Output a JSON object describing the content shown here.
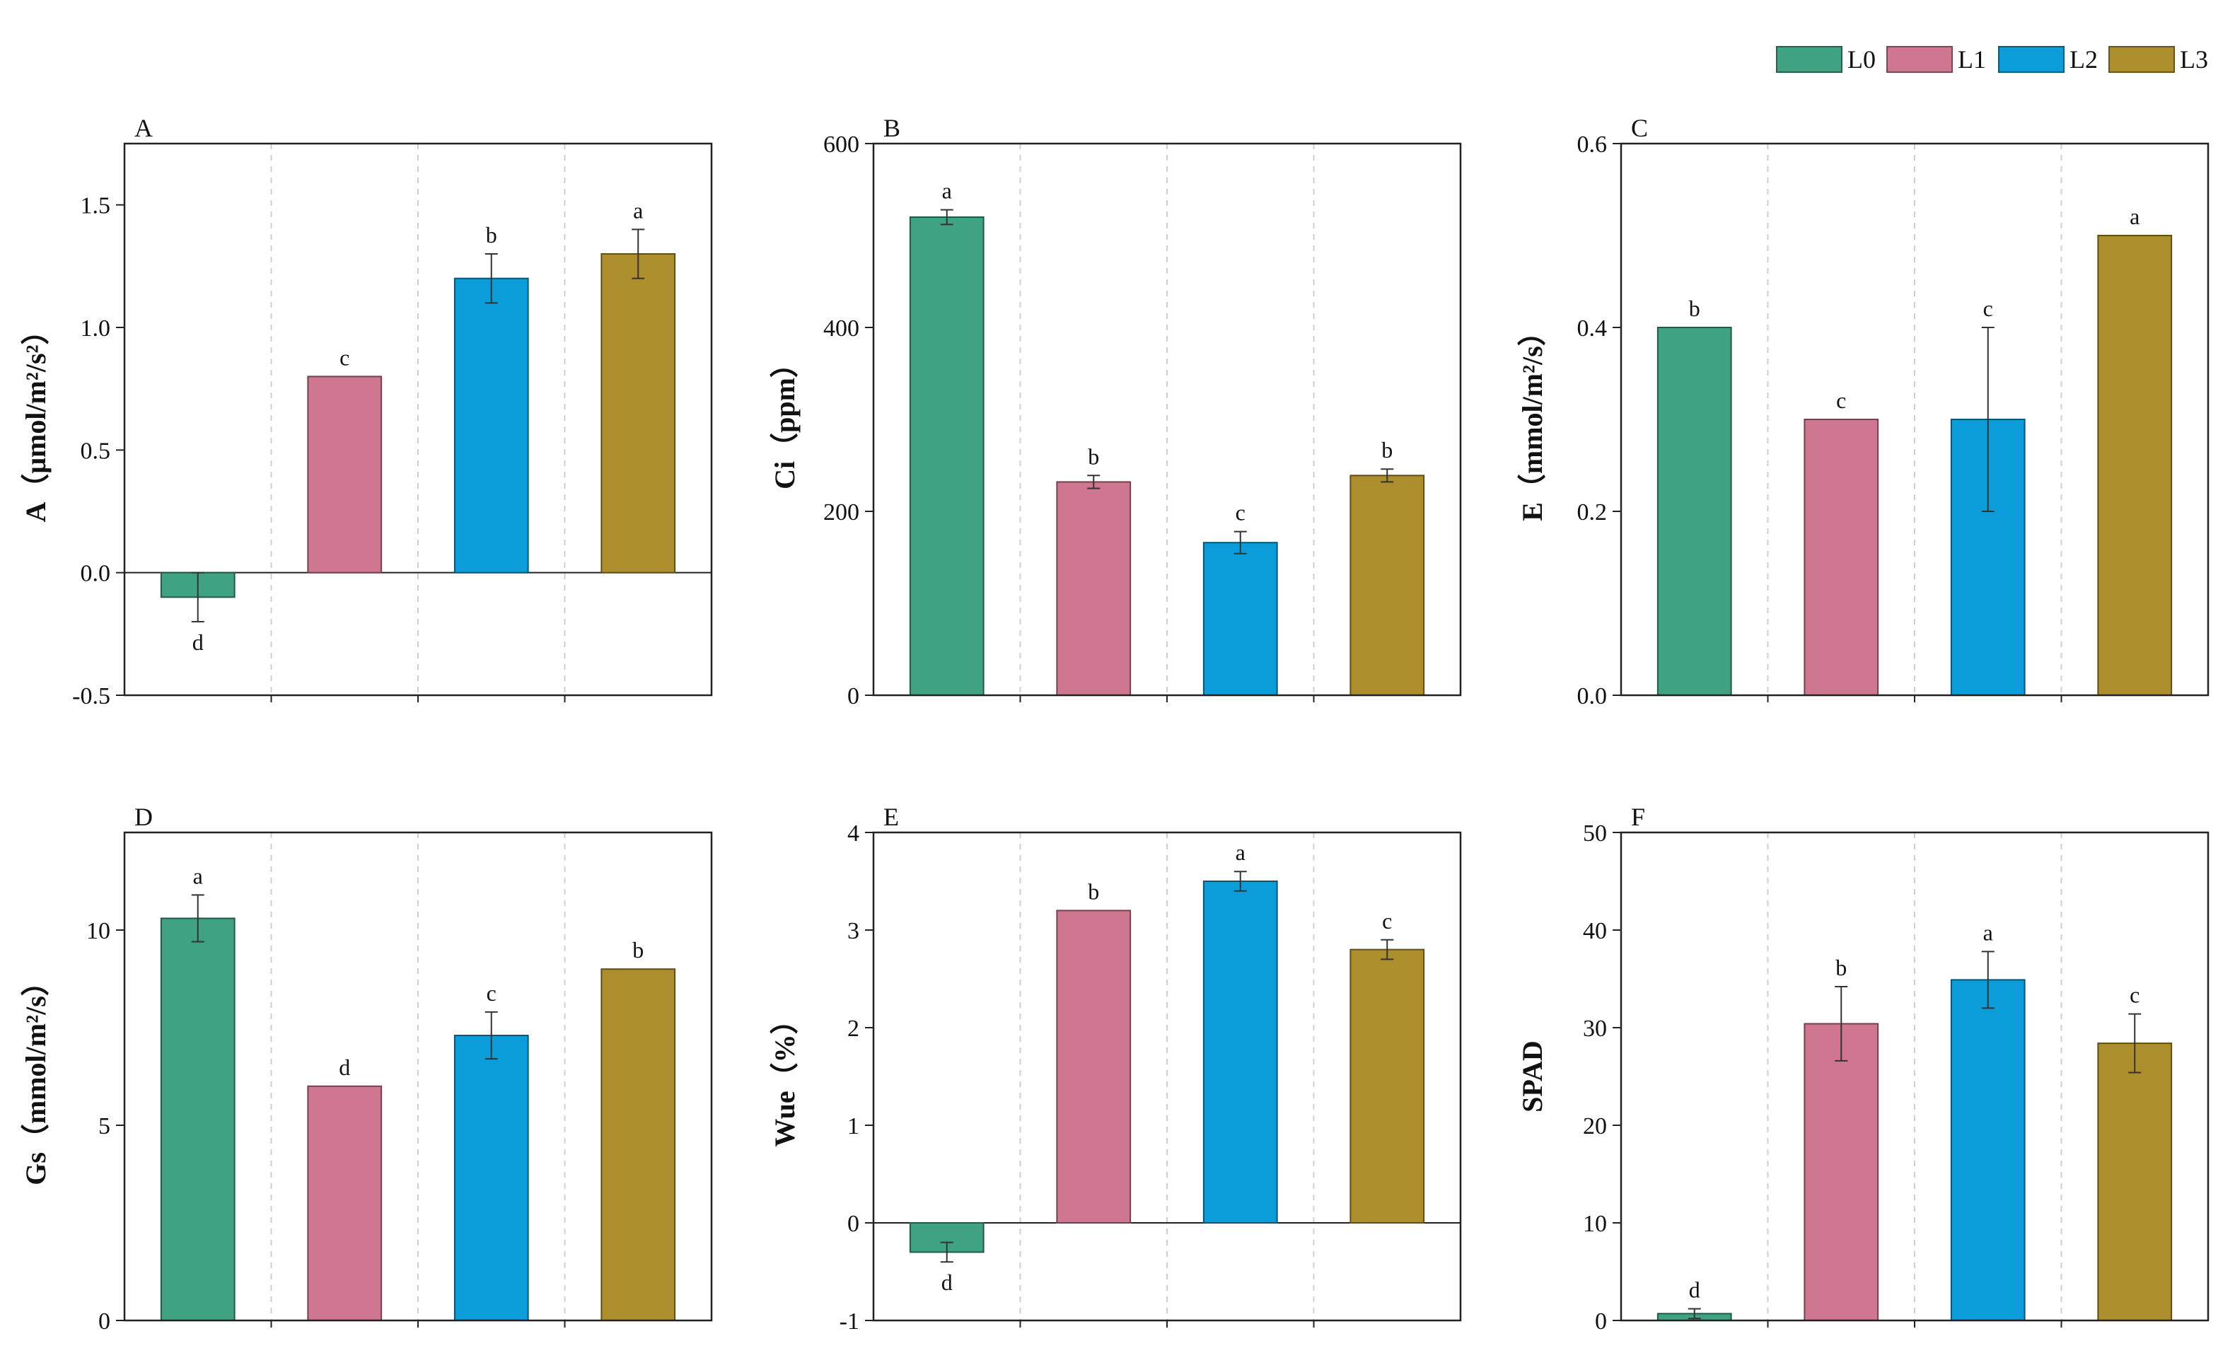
{
  "legend": {
    "items": [
      {
        "name": "L0",
        "color": "#3FA283"
      },
      {
        "name": "L1",
        "color": "#CF7690"
      },
      {
        "name": "L2",
        "color": "#0A9DDA"
      },
      {
        "name": "L3",
        "color": "#AD8E2C"
      }
    ]
  },
  "chart_data": [
    {
      "type": "bar",
      "panel": "A",
      "ylabel": "A（μmol/m²/s²）",
      "categories": [
        "L0",
        "L1",
        "L2",
        "L3"
      ],
      "values": [
        -0.1,
        0.8,
        1.2,
        1.3
      ],
      "errors": [
        0.1,
        0.0,
        0.1,
        0.1
      ],
      "significance": [
        "d",
        "c",
        "b",
        "a"
      ],
      "ylim": [
        -0.5,
        1.75
      ],
      "yticks": [
        -0.5,
        0.0,
        0.5,
        1.0,
        1.5
      ],
      "ytick_labels": [
        "-0.5",
        "0.0",
        "0.5",
        "1.0",
        "1.5"
      ],
      "grid": "vertical dashed between categories"
    },
    {
      "type": "bar",
      "panel": "B",
      "ylabel": "Ci（ppm）",
      "categories": [
        "L0",
        "L1",
        "L2",
        "L3"
      ],
      "values": [
        520,
        232,
        166,
        239
      ],
      "errors": [
        8,
        7,
        12,
        7
      ],
      "significance": [
        "a",
        "b",
        "c",
        "b"
      ],
      "ylim": [
        0,
        600
      ],
      "yticks": [
        0,
        200,
        400,
        600
      ],
      "ytick_labels": [
        "0",
        "200",
        "400",
        "600"
      ],
      "grid": "vertical dashed between categories"
    },
    {
      "type": "bar",
      "panel": "C",
      "ylabel": "E（mmol/m²/s）",
      "categories": [
        "L0",
        "L1",
        "L2",
        "L3"
      ],
      "values": [
        0.4,
        0.3,
        0.3,
        0.5
      ],
      "errors": [
        0.0,
        0.0,
        0.1,
        0.0
      ],
      "significance": [
        "b",
        "c",
        "c",
        "a"
      ],
      "ylim": [
        0,
        0.6
      ],
      "yticks": [
        0.0,
        0.2,
        0.4,
        0.6
      ],
      "ytick_labels": [
        "0.0",
        "0.2",
        "0.4",
        "0.6"
      ],
      "grid": "vertical dashed between categories"
    },
    {
      "type": "bar",
      "panel": "D",
      "ylabel": "Gs（mmol/m²/s）",
      "categories": [
        "L0",
        "L1",
        "L2",
        "L3"
      ],
      "values": [
        10.3,
        6.0,
        7.3,
        9.0
      ],
      "errors": [
        0.6,
        0.0,
        0.6,
        0.0
      ],
      "significance": [
        "a",
        "d",
        "c",
        "b"
      ],
      "ylim": [
        0,
        12.5
      ],
      "yticks": [
        0,
        5,
        10
      ],
      "ytick_labels": [
        "0",
        "5",
        "10"
      ],
      "grid": "vertical dashed between categories"
    },
    {
      "type": "bar",
      "panel": "E",
      "ylabel": "Wue（%）",
      "categories": [
        "L0",
        "L1",
        "L2",
        "L3"
      ],
      "values": [
        -0.3,
        3.2,
        3.5,
        2.8
      ],
      "errors": [
        0.1,
        0.0,
        0.1,
        0.1
      ],
      "significance": [
        "d",
        "b",
        "a",
        "c"
      ],
      "ylim": [
        -1,
        4
      ],
      "yticks": [
        -1,
        0,
        1,
        2,
        3,
        4
      ],
      "ytick_labels": [
        "-1",
        "0",
        "1",
        "2",
        "3",
        "4"
      ],
      "grid": "vertical dashed between categories"
    },
    {
      "type": "bar",
      "panel": "F",
      "ylabel": "SPAD",
      "categories": [
        "L0",
        "L1",
        "L2",
        "L3"
      ],
      "values": [
        0.7,
        30.4,
        34.9,
        28.4
      ],
      "errors": [
        0.5,
        3.8,
        2.9,
        3.0
      ],
      "significance": [
        "d",
        "b",
        "a",
        "c"
      ],
      "ylim": [
        0,
        50
      ],
      "yticks": [
        0,
        10,
        20,
        30,
        40,
        50
      ],
      "ytick_labels": [
        "0",
        "10",
        "20",
        "30",
        "40",
        "50"
      ],
      "grid": "vertical dashed between categories"
    }
  ]
}
